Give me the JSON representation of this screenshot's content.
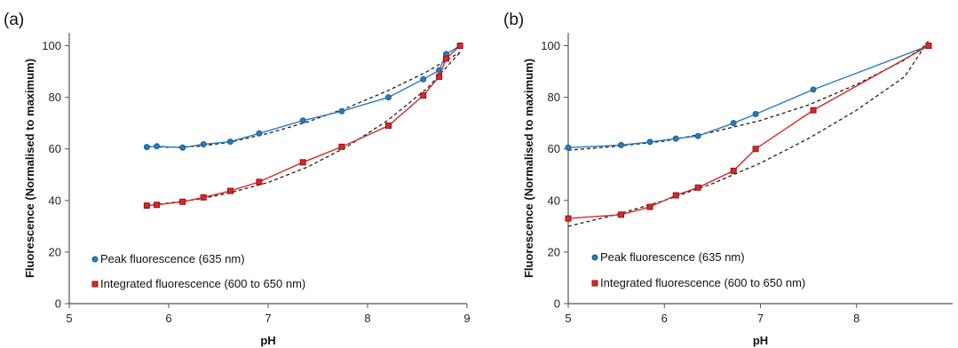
{
  "colors": {
    "peak": "#2a7ab8",
    "peak_marker": "#1a5f96",
    "integrated": "#d42a2a",
    "integrated_marker": "#9c1010",
    "fit": "#222222",
    "axis": "#555555"
  },
  "chart_data": [
    {
      "type": "line",
      "panel_label": "(a)",
      "xlabel": "pH",
      "ylabel": "Fluorescence (Normalised to maximum)",
      "xlim": [
        5,
        9
      ],
      "ylim": [
        0,
        105
      ],
      "xticks": [
        5,
        6,
        7,
        8,
        9
      ],
      "yticks": [
        0,
        20,
        40,
        60,
        80,
        100
      ],
      "grid": false,
      "legend_position": "bottom-left",
      "series": [
        {
          "name": "Peak fluorescence (635 nm)",
          "marker": "circle",
          "x": [
            5.78,
            5.88,
            6.14,
            6.35,
            6.62,
            6.91,
            7.35,
            7.74,
            8.21,
            8.56,
            8.72,
            8.79,
            8.93
          ],
          "y": [
            60.7,
            61.0,
            60.5,
            61.8,
            62.8,
            66.0,
            71.0,
            74.6,
            80.0,
            87.0,
            90.5,
            96.8,
            100.0
          ]
        },
        {
          "name": "Integrated fluorescence (600 to 650 nm)",
          "marker": "square",
          "x": [
            5.78,
            5.88,
            6.14,
            6.35,
            6.62,
            6.91,
            7.35,
            7.74,
            8.21,
            8.56,
            8.72,
            8.79,
            8.93
          ],
          "y": [
            38.0,
            38.3,
            39.5,
            41.2,
            43.7,
            47.2,
            54.8,
            60.8,
            69.0,
            80.7,
            88.0,
            95.0,
            100.0
          ]
        }
      ],
      "trendlines": [
        {
          "x": [
            5.78,
            6.0,
            6.3,
            6.6,
            7.0,
            7.4,
            7.8,
            8.2,
            8.6,
            8.93
          ],
          "y": [
            61.0,
            60.6,
            61.0,
            62.5,
            66.0,
            70.5,
            76.0,
            82.5,
            90.0,
            97.5
          ]
        },
        {
          "x": [
            5.78,
            6.0,
            6.3,
            6.6,
            7.0,
            7.4,
            7.8,
            8.2,
            8.6,
            8.93
          ],
          "y": [
            38.0,
            39.0,
            40.5,
            42.8,
            47.0,
            53.0,
            61.0,
            71.0,
            83.5,
            97.5
          ]
        }
      ]
    },
    {
      "type": "line",
      "panel_label": "(b)",
      "xlabel": "pH",
      "ylabel": "Fluorescence (Normalised to maximum)",
      "xlim": [
        5,
        9
      ],
      "ylim": [
        0,
        105
      ],
      "xticks": [
        5,
        6,
        7,
        8
      ],
      "yticks": [
        0,
        20,
        40,
        60,
        80,
        100
      ],
      "grid": false,
      "legend_position": "bottom-left",
      "series": [
        {
          "name": "Peak fluorescence (635 nm)",
          "marker": "circle",
          "x": [
            5.0,
            5.55,
            5.85,
            6.12,
            6.35,
            6.72,
            6.95,
            7.55,
            8.75
          ],
          "y": [
            60.5,
            61.5,
            62.7,
            64.0,
            65.0,
            70.0,
            73.5,
            83.0,
            100.0
          ]
        },
        {
          "name": "Integrated fluorescence (600 to 650 nm)",
          "marker": "square",
          "x": [
            5.0,
            5.55,
            5.85,
            6.12,
            6.35,
            6.72,
            6.95,
            7.55,
            8.75
          ],
          "y": [
            33.0,
            34.5,
            37.5,
            42.0,
            45.0,
            51.5,
            60.0,
            75.0,
            100.0
          ]
        }
      ],
      "trendlines": [
        {
          "x": [
            5.0,
            5.5,
            6.0,
            6.5,
            7.0,
            7.5,
            8.0,
            8.5,
            8.75
          ],
          "y": [
            59.5,
            61.0,
            63.0,
            66.5,
            71.0,
            77.0,
            85.0,
            94.5,
            101.0
          ]
        },
        {
          "x": [
            5.0,
            5.5,
            6.0,
            6.5,
            7.0,
            7.5,
            8.0,
            8.5,
            8.75
          ],
          "y": [
            30.0,
            34.5,
            40.0,
            46.5,
            54.5,
            64.0,
            75.0,
            88.0,
            102.0
          ]
        }
      ]
    }
  ]
}
